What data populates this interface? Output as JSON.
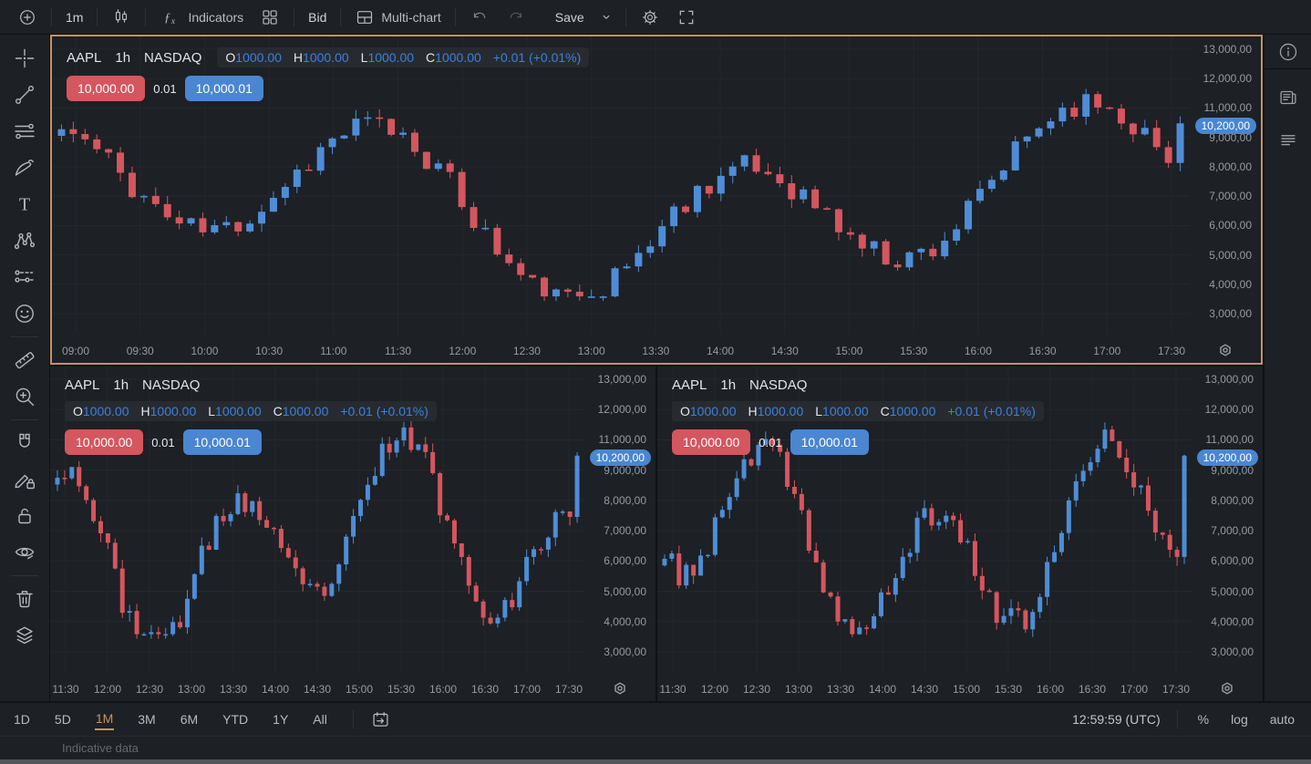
{
  "colors": {
    "background": "#1d2024",
    "grid": "#24282d",
    "axis_text": "#979ba2",
    "text": "#ced1d7",
    "candle_up": "#4e8dd6",
    "candle_down": "#d4565f",
    "bid_badge": "#d4565f",
    "ask_badge": "#4a86d1",
    "ohlc_value_blue": "#3b80de",
    "selected_chart_border": "#c0946a",
    "active_range": "#c9935f"
  },
  "top_toolbar": {
    "interval": "1m",
    "indicators_label": "Indicators",
    "bid_label": "Bid",
    "multichart_label": "Multi-chart",
    "save_label": "Save",
    "icons": [
      "add-symbol",
      "candlestick-style",
      "fx",
      "grid-layout",
      "multichart-layout",
      "undo",
      "redo",
      "chevron-down",
      "settings-gear",
      "fullscreen"
    ]
  },
  "left_toolbar": {
    "tools": [
      "crosshair",
      "trend-line",
      "fib-retracement",
      "brush",
      "text",
      "xabcd-pattern",
      "forecast",
      "emoji",
      "divider",
      "ruler",
      "zoom-in",
      "divider",
      "magnet",
      "drawing-mode-lock",
      "lock-all-drawings",
      "hide-all-drawings",
      "divider",
      "remove-drawings",
      "object-tree"
    ]
  },
  "right_toolbar": {
    "tools": [
      "info",
      "news",
      "details"
    ]
  },
  "charts": [
    {
      "selected": true,
      "layout": "one-line",
      "symbol": "AAPL",
      "interval": "1h",
      "exchange": "NASDAQ",
      "ohlc": {
        "o": "1000.00",
        "h": "1000.00",
        "l": "1000.00",
        "c": "1000.00",
        "change": "+0.01 (+0.01%)"
      },
      "bid": "10,000.00",
      "spread": "0.01",
      "ask": "10,000.01",
      "price_ticks": [
        "13,000,00",
        "12,000,00",
        "11,000,00",
        "9,000,00",
        "8,000,00",
        "7,000,00",
        "6,000,00",
        "5,000,00",
        "4,000,00",
        "3,000,00"
      ],
      "price_badge": "10,200,00",
      "time_labels": [
        "09:00",
        "09:30",
        "10:00",
        "10:30",
        "11:00",
        "11:30",
        "12:00",
        "12:30",
        "13:00",
        "13:30",
        "14:00",
        "14:30",
        "15:00",
        "15:30",
        "16:00",
        "16:30",
        "17:00",
        "17:30"
      ],
      "gen": {
        "seed": 11,
        "count": 96,
        "base": 7150,
        "a1": 2450,
        "f1": 0.21,
        "p1": 2.1,
        "a2": 1450,
        "f2": 0.085,
        "p2": 0.5,
        "noise": 1050,
        "last": 10200
      }
    },
    {
      "selected": false,
      "layout": "two-line",
      "symbol": "AAPL",
      "interval": "1h",
      "exchange": "NASDAQ",
      "ohlc": {
        "o": "1000.00",
        "h": "1000.00",
        "l": "1000.00",
        "c": "1000.00",
        "change": "+0.01 (+0.01%)"
      },
      "bid": "10,000.00",
      "spread": "0.01",
      "ask": "10,000.01",
      "price_ticks": [
        "13,000,00",
        "12,000,00",
        "11,000,00",
        "9,000,00",
        "8,000,00",
        "7,000,00",
        "6,000,00",
        "5,000,00",
        "4,000,00",
        "3,000,00"
      ],
      "price_badge": "10,200,00",
      "time_labels": [
        "11:30",
        "12:00",
        "12:30",
        "13:00",
        "13:30",
        "14:00",
        "14:30",
        "15:00",
        "15:30",
        "16:00",
        "16:30",
        "17:00",
        "17:30"
      ],
      "gen": {
        "seed": 23,
        "count": 73,
        "base": 7000,
        "a1": 2500,
        "f1": 0.27,
        "p1": 1.2,
        "a2": 1450,
        "f2": 0.11,
        "p2": 2.8,
        "noise": 1050,
        "last": 10200
      }
    },
    {
      "selected": false,
      "layout": "two-line",
      "symbol": "AAPL",
      "interval": "1h",
      "exchange": "NASDAQ",
      "ohlc": {
        "o": "1000.00",
        "h": "1000.00",
        "l": "1000.00",
        "c": "1000.00",
        "change": "+0.01 (+0.01%)"
      },
      "bid": "10,000.00",
      "spread": "0.01",
      "ask": "10,000.01",
      "price_ticks": [
        "13,000,00",
        "12,000,00",
        "11,000,00",
        "9,000,00",
        "8,000,00",
        "7,000,00",
        "6,000,00",
        "5,000,00",
        "4,000,00",
        "3,000,00"
      ],
      "price_badge": "10,200,00",
      "time_labels": [
        "11:30",
        "12:00",
        "12:30",
        "13:00",
        "13:30",
        "14:00",
        "14:30",
        "15:00",
        "15:30",
        "16:00",
        "16:30",
        "17:00",
        "17:30"
      ],
      "gen": {
        "seed": 37,
        "count": 73,
        "base": 7000,
        "a1": 2500,
        "f1": 0.27,
        "p1": 4.0,
        "a2": 1450,
        "f2": 0.1,
        "p2": 1.1,
        "noise": 1050,
        "last": 10200
      }
    }
  ],
  "bottom_toolbar": {
    "ranges": [
      "1D",
      "5D",
      "1M",
      "3M",
      "6M",
      "YTD",
      "1Y",
      "All"
    ],
    "active_range": "1M",
    "goto_date_icon": "calendar-goto",
    "clock": "12:59:59 (UTC)",
    "percent_label": "%",
    "log_label": "log",
    "auto_label": "auto"
  },
  "status": {
    "text": "Indicative data"
  },
  "chart_data": {
    "type": "candlestick",
    "charts": [
      {
        "title": "AAPL 1h NASDAQ",
        "position": "top",
        "x_ticks": [
          "09:00",
          "09:30",
          "10:00",
          "10:30",
          "11:00",
          "11:30",
          "12:00",
          "12:30",
          "13:00",
          "13:30",
          "14:00",
          "14:30",
          "15:00",
          "15:30",
          "16:00",
          "16:30",
          "17:00",
          "17:30"
        ],
        "y_ticks": [
          13000,
          12000,
          11000,
          9000,
          8000,
          7000,
          6000,
          5000,
          4000,
          3000
        ],
        "last_price": 10200,
        "ohlc_readout": {
          "open": 1000,
          "high": 1000,
          "low": 1000,
          "close": 1000,
          "change": 0.01,
          "change_pct": 0.01
        },
        "bid": 10000,
        "spread": 0.01,
        "ask": 10000.01,
        "approx_price_range": [
          3500,
          11450
        ]
      },
      {
        "title": "AAPL 1h NASDAQ",
        "position": "bottom-left",
        "x_ticks": [
          "11:30",
          "12:00",
          "12:30",
          "13:00",
          "13:30",
          "14:00",
          "14:30",
          "15:00",
          "15:30",
          "16:00",
          "16:30",
          "17:00",
          "17:30"
        ],
        "y_ticks": [
          13000,
          12000,
          11000,
          9000,
          8000,
          7000,
          6000,
          5000,
          4000,
          3000
        ],
        "last_price": 10200,
        "ohlc_readout": {
          "open": 1000,
          "high": 1000,
          "low": 1000,
          "close": 1000,
          "change": 0.01,
          "change_pct": 0.01
        },
        "bid": 10000,
        "spread": 0.01,
        "ask": 10000.01,
        "approx_price_range": [
          3500,
          11450
        ]
      },
      {
        "title": "AAPL 1h NASDAQ",
        "position": "bottom-right",
        "x_ticks": [
          "11:30",
          "12:00",
          "12:30",
          "13:00",
          "13:30",
          "14:00",
          "14:30",
          "15:00",
          "15:30",
          "16:00",
          "16:30",
          "17:00",
          "17:30"
        ],
        "y_ticks": [
          13000,
          12000,
          11000,
          9000,
          8000,
          7000,
          6000,
          5000,
          4000,
          3000
        ],
        "last_price": 10200,
        "ohlc_readout": {
          "open": 1000,
          "high": 1000,
          "low": 1000,
          "close": 1000,
          "change": 0.01,
          "change_pct": 0.01
        },
        "bid": 10000,
        "spread": 0.01,
        "ask": 10000.01,
        "approx_price_range": [
          3500,
          11450
        ]
      }
    ]
  }
}
